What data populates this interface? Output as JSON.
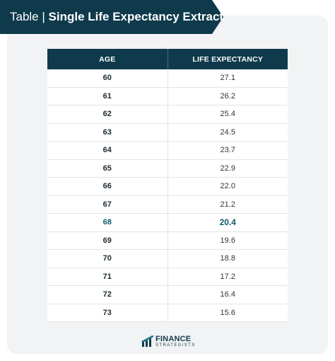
{
  "banner": {
    "prefix": "Table | ",
    "title": "Single Life Expectancy Extract",
    "color": "#0e3a4c"
  },
  "table": {
    "headers": [
      "AGE",
      "LIFE EXPECTANCY"
    ],
    "rows": [
      {
        "age": "60",
        "expectancy": "27.1"
      },
      {
        "age": "61",
        "expectancy": "26.2"
      },
      {
        "age": "62",
        "expectancy": "25.4"
      },
      {
        "age": "63",
        "expectancy": "24.5"
      },
      {
        "age": "64",
        "expectancy": "23.7"
      },
      {
        "age": "65",
        "expectancy": "22.9"
      },
      {
        "age": "66",
        "expectancy": "22.0"
      },
      {
        "age": "67",
        "expectancy": "21.2"
      },
      {
        "age": "68",
        "expectancy": "20.4"
      },
      {
        "age": "69",
        "expectancy": "19.6"
      },
      {
        "age": "70",
        "expectancy": "18.8"
      },
      {
        "age": "71",
        "expectancy": "17.2"
      },
      {
        "age": "72",
        "expectancy": "16.4"
      },
      {
        "age": "73",
        "expectancy": "15.6"
      }
    ],
    "highlighted_age": "68",
    "highlight_color": "#0f5a6d"
  },
  "footer": {
    "brand_line1": "FINANCE",
    "brand_line2": "STRATEGISTS",
    "logo_icon": "finance-strategists-logo-icon"
  }
}
